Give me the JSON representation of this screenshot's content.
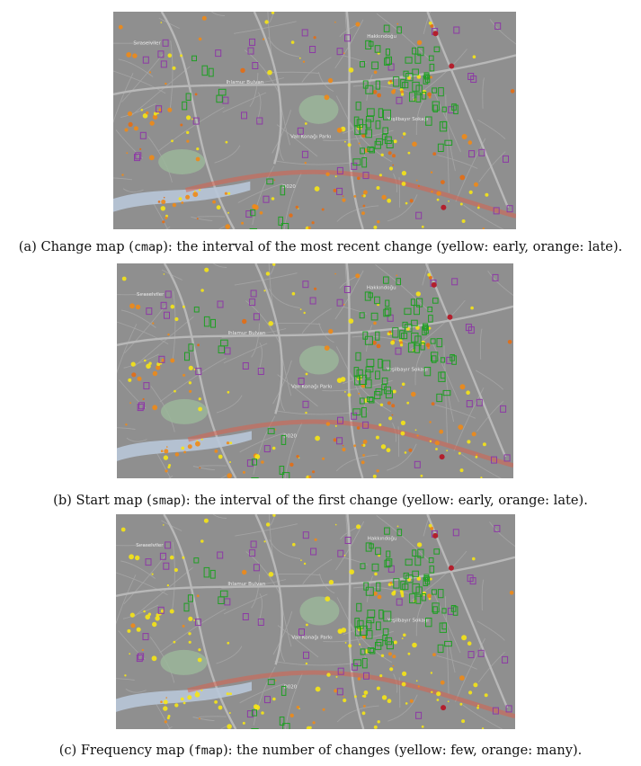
{
  "figures": [
    {
      "id": "a",
      "label": "(a)",
      "caption_before": "Change map (",
      "code": "cmap",
      "caption_after": "): the interval of the most recent change (yellow: early, orange: late).",
      "style": "change"
    },
    {
      "id": "b",
      "label": "(b)",
      "caption_before": "Start map (",
      "code": "smap",
      "caption_after": "): the interval of the first change (yellow: early, orange: late).",
      "style": "start"
    },
    {
      "id": "c",
      "label": "(c)",
      "caption_before": "Frequency map (",
      "code": "fmap",
      "caption_after": "): the number of changes (yellow: few, orange: many).",
      "style": "frequency"
    }
  ],
  "map_labels": {
    "road_d020": "D020",
    "district_north": "Hakkındoğu",
    "district_west": "Sıraselviler",
    "park": "Vali Konağı Parkı",
    "street_a": "Ihlamur Bulvarı",
    "street_b": "Yeşilbayır Sokağı"
  },
  "colors": {
    "map_base": "#8f8f8f",
    "road_major": "#b8b8b8",
    "road_minor": "#a7a7a7",
    "road_red": "#d9634f",
    "park": "#9bb69a",
    "water": "#b8c7d8",
    "yellow": "#f6e515",
    "orange": "#f08a16",
    "dark_orange": "#e56d12",
    "green_box": "#1f9f24",
    "purple_box": "#8d3aa5",
    "red_dot": "#b31f2d"
  }
}
